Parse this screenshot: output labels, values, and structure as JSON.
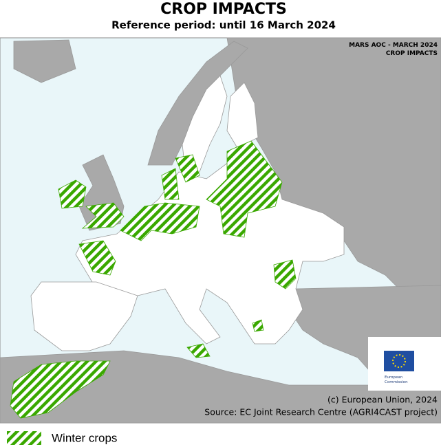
{
  "header": {
    "title": "CROP IMPACTS",
    "subtitle": "Reference period: until 16 March 2024"
  },
  "map": {
    "corner_label": [
      "MARS AOC - MARCH 2024",
      "CROP IMPACTS"
    ],
    "logo": [
      "European",
      "Commission"
    ],
    "credits": [
      "(c) European Union, 2024",
      "Source: EC Joint Research Centre (AGRI4CAST project)"
    ]
  },
  "legend": {
    "items": [
      "Winter crops"
    ]
  }
}
